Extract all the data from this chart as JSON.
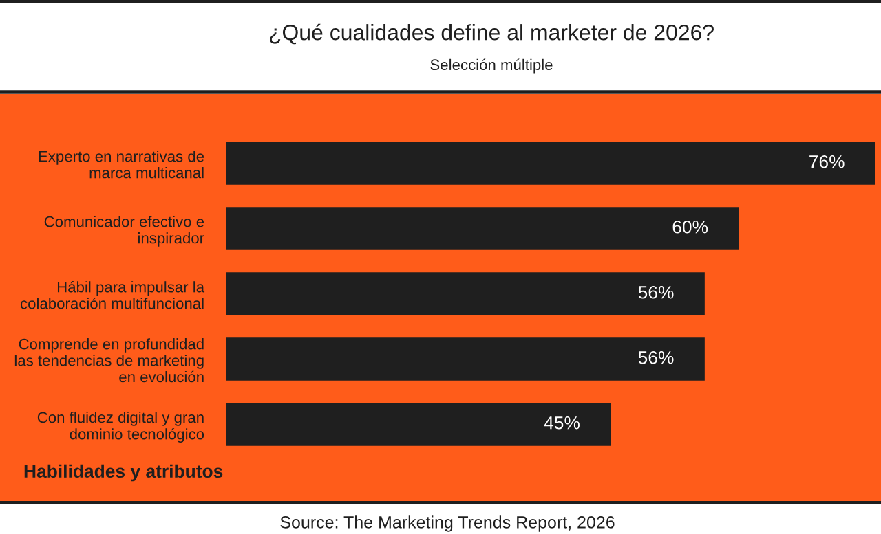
{
  "chart_data": {
    "type": "bar",
    "orientation": "horizontal",
    "title": "¿Qué cualidades define al marketer de 2026?",
    "subtitle": "Selección múltiple",
    "categories": [
      "Experto en narrativas de\nmarca multicanal",
      "Comunicador efectivo e\ninspirador",
      "Hábil para impulsar la\ncolaboración multifuncional",
      "Comprende en profundidad\nlas tendencias de marketing\nen evolución",
      "Con fluidez digital y gran\ndominio tecnológico"
    ],
    "values": [
      76,
      60,
      56,
      56,
      45
    ],
    "value_labels": [
      "76%",
      "60%",
      "56%",
      "56%",
      "45%"
    ],
    "color": "#1f1f1f",
    "annotations": [
      "Habilidades y atributos",
      "Source: The Marketing Trends Report, 2026"
    ]
  }
}
